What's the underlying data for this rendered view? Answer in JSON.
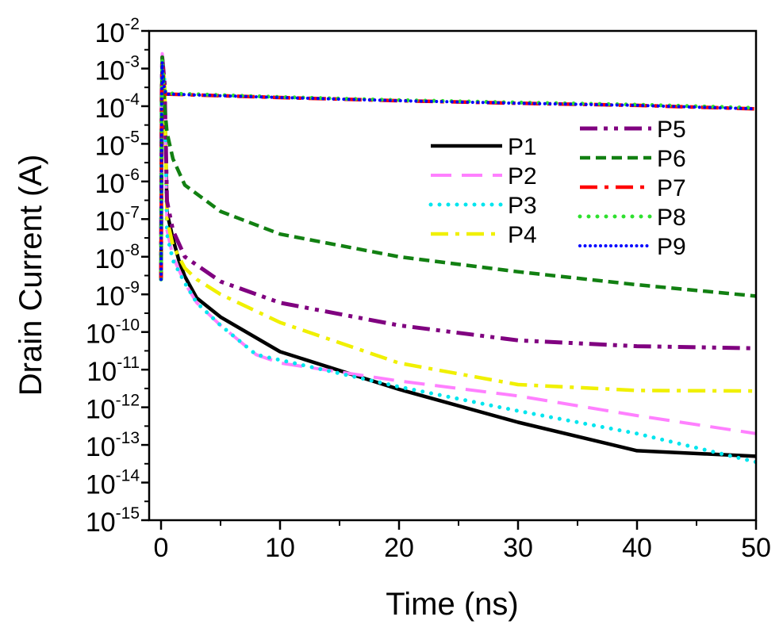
{
  "chart_data": {
    "type": "line",
    "title": "",
    "xlabel": "Time (ns)",
    "ylabel": "Drain Current (A)",
    "x_scale": "linear",
    "y_scale": "log",
    "xlim": [
      -1,
      50
    ],
    "ylim_exponent": [
      -15,
      -2
    ],
    "x_ticks": [
      0,
      10,
      20,
      30,
      40,
      50
    ],
    "x_tick_labels": [
      "0",
      "10",
      "20",
      "30",
      "40",
      "50"
    ],
    "y_tick_exponents": [
      -2,
      -3,
      -4,
      -5,
      -6,
      -7,
      -8,
      -9,
      -10,
      -11,
      -12,
      -13,
      -14,
      -15
    ],
    "y_tick_labels": [
      {
        "base": "10",
        "exp": "-2"
      },
      {
        "base": "10",
        "exp": "-3"
      },
      {
        "base": "10",
        "exp": "-4"
      },
      {
        "base": "10",
        "exp": "-5"
      },
      {
        "base": "10",
        "exp": "-6"
      },
      {
        "base": "10",
        "exp": "-7"
      },
      {
        "base": "10",
        "exp": "-8"
      },
      {
        "base": "10",
        "exp": "-9"
      },
      {
        "base": "10",
        "exp": "-10"
      },
      {
        "base": "10",
        "exp": "-11"
      },
      {
        "base": "10",
        "exp": "-12"
      },
      {
        "base": "10",
        "exp": "-13"
      },
      {
        "base": "10",
        "exp": "-14"
      },
      {
        "base": "10",
        "exp": "-15"
      }
    ],
    "grid": false,
    "legend_position": "top-right",
    "series": [
      {
        "name": "P1",
        "color": "#000000",
        "dash": "solid",
        "x": [
          0,
          0.05,
          0.1,
          0.3,
          0.5,
          1,
          1.5,
          2,
          3,
          5,
          10,
          20,
          30,
          40,
          50
        ],
        "y": [
          2.5e-09,
          0.0001,
          0.001,
          0.0003,
          1.5e-07,
          3e-08,
          8e-09,
          3e-09,
          8e-10,
          2.5e-10,
          3e-11,
          3e-12,
          4e-13,
          7e-14,
          5e-14
        ]
      },
      {
        "name": "P2",
        "color": "#ff80ff",
        "dash": "dash",
        "x": [
          0,
          0.05,
          0.1,
          0.3,
          0.5,
          1,
          2,
          3,
          5,
          8,
          10,
          20,
          30,
          40,
          50
        ],
        "y": [
          2.5e-09,
          0.0002,
          0.0025,
          0.0005,
          5e-08,
          1e-08,
          2e-09,
          6e-10,
          1.5e-10,
          2.5e-11,
          1.5e-11,
          5e-12,
          2e-12,
          6e-13,
          2e-13
        ]
      },
      {
        "name": "P3",
        "color": "#00e5ee",
        "dash": "dot",
        "x": [
          0,
          0.05,
          0.1,
          0.3,
          0.5,
          1,
          2,
          3,
          5,
          8,
          10,
          20,
          30,
          40,
          50
        ],
        "y": [
          2.5e-09,
          0.00015,
          0.002,
          0.0004,
          4e-08,
          8e-09,
          2e-09,
          6e-10,
          1.5e-10,
          2.5e-11,
          1.8e-11,
          3.5e-12,
          8e-13,
          2e-13,
          3.5e-14
        ]
      },
      {
        "name": "P4",
        "color": "#f0f000",
        "dash": "dashdot",
        "x": [
          0,
          0.05,
          0.1,
          0.3,
          0.5,
          1,
          2,
          3,
          5,
          10,
          20,
          30,
          40,
          50
        ],
        "y": [
          2.5e-09,
          0.00015,
          0.002,
          0.0004,
          1e-07,
          2e-08,
          5e-09,
          2.5e-09,
          1e-09,
          1.8e-10,
          1.5e-11,
          4e-12,
          2.8e-12,
          2.7e-12
        ]
      },
      {
        "name": "P5",
        "color": "#800080",
        "dash": "dashdotdot",
        "x": [
          0,
          0.05,
          0.1,
          0.3,
          0.5,
          1,
          2,
          5,
          10,
          20,
          30,
          40,
          50
        ],
        "y": [
          2.5e-09,
          0.00015,
          0.002,
          0.0004,
          3e-07,
          5e-08,
          1e-08,
          2.2e-09,
          6e-10,
          1.5e-10,
          6e-11,
          4.2e-11,
          3.7e-11
        ]
      },
      {
        "name": "P6",
        "color": "#128012",
        "dash": "shortdash",
        "x": [
          0,
          0.05,
          0.1,
          0.3,
          0.5,
          1,
          2,
          5,
          10,
          20,
          30,
          40,
          50
        ],
        "y": [
          2.5e-09,
          0.00015,
          0.002,
          0.0001,
          2e-05,
          4e-06,
          8e-07,
          1.6e-07,
          4e-08,
          1e-08,
          4e-09,
          1.8e-09,
          9e-10
        ]
      },
      {
        "name": "P7",
        "color": "#ff0000",
        "dash": "dashdot",
        "x": [
          0,
          0.05,
          0.1,
          0.2,
          0.4,
          10,
          20,
          30,
          40,
          50
        ],
        "y": [
          2.5e-09,
          0.0001,
          0.0015,
          0.0004,
          0.00021,
          0.00017,
          0.00014,
          0.00012,
          0.000105,
          8.5e-05
        ]
      },
      {
        "name": "P8",
        "color": "#2ee02e",
        "dash": "dot",
        "x": [
          0,
          0.05,
          0.1,
          0.2,
          0.4,
          10,
          20,
          30,
          40,
          50
        ],
        "y": [
          2.5e-09,
          0.0001,
          0.0018,
          0.0004,
          0.00022,
          0.000175,
          0.000145,
          0.000125,
          0.00011,
          9e-05
        ]
      },
      {
        "name": "P9",
        "color": "#0000ff",
        "dash": "fine",
        "x": [
          0,
          0.05,
          0.1,
          0.2,
          0.4,
          10,
          20,
          30,
          40,
          50
        ],
        "y": [
          2.5e-09,
          0.0001,
          0.0015,
          0.0004,
          0.00021,
          0.00017,
          0.00014,
          0.00012,
          0.000105,
          8.5e-05
        ]
      }
    ]
  }
}
